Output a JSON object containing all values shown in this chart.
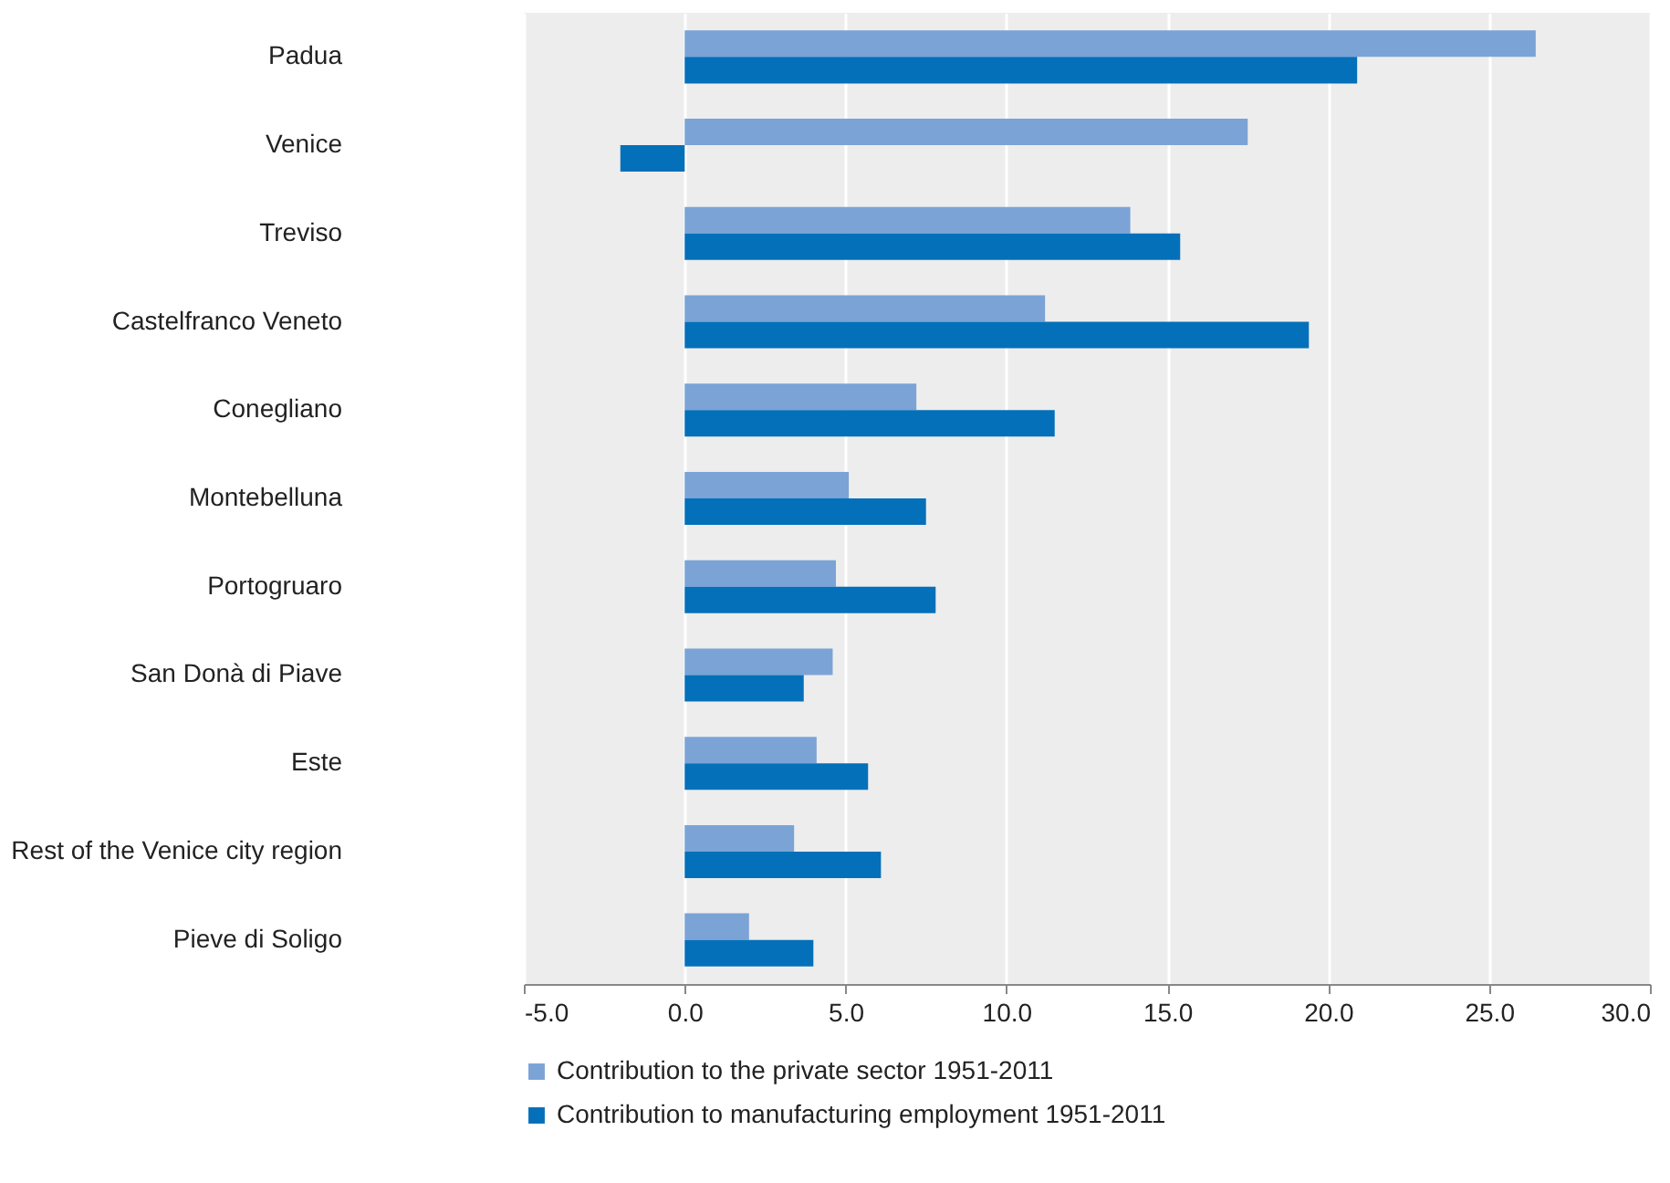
{
  "chart_data": {
    "type": "bar",
    "orientation": "horizontal",
    "categories": [
      "Padua",
      "Venice",
      "Treviso",
      "Castelfranco Veneto",
      "Conegliano",
      "Montebelluna",
      "Portogruaro",
      "San Donà di Piave",
      "Este",
      "Rest of the Venice city region",
      "Pieve di Soligo"
    ],
    "series": [
      {
        "name": "Contribution to the private sector 1951-2011",
        "color": "#7ba3d6",
        "values": [
          26.45,
          17.5,
          13.85,
          11.2,
          7.2,
          5.1,
          4.7,
          4.6,
          4.1,
          3.4,
          2.0
        ]
      },
      {
        "name": "Contribution to manufacturing employment 1951-2011",
        "color": "#0570ba",
        "values": [
          20.9,
          -2.0,
          15.4,
          19.4,
          11.5,
          7.5,
          7.8,
          3.7,
          5.7,
          6.1,
          4.0
        ]
      }
    ],
    "xlim": [
      -5,
      30
    ],
    "xticks": [
      {
        "value": -5,
        "label": "-5.0"
      },
      {
        "value": 0,
        "label": "0.0"
      },
      {
        "value": 5,
        "label": "5.0"
      },
      {
        "value": 10,
        "label": "10.0"
      },
      {
        "value": 15,
        "label": "15.0"
      },
      {
        "value": 20,
        "label": "20.0"
      },
      {
        "value": 25,
        "label": "25.0"
      },
      {
        "value": 30,
        "label": "30.0"
      }
    ],
    "grid": "x",
    "legend": "bottom"
  }
}
